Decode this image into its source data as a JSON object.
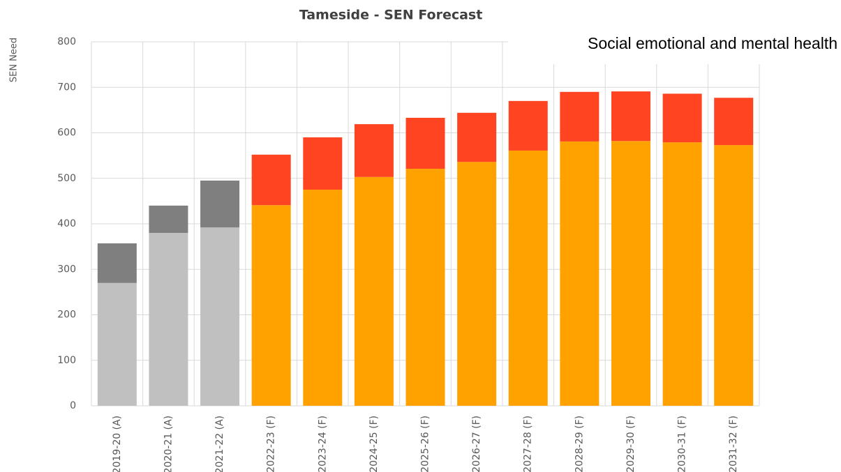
{
  "chart_data": {
    "type": "stacked-bar",
    "title": "Tameside - SEN Forecast",
    "annotation": "Social emotional and mental health",
    "y_label": "SEN Need",
    "categories": [
      "2019-20 (A)",
      "2020-21 (A)",
      "2021-22 (A)",
      "2022-23 (F)",
      "2023-24 (F)",
      "2024-25 (F)",
      "2025-26 (F)",
      "2026-27 (F)",
      "2027-28 (F)",
      "2028-29 (F)",
      "2029-30 (F)",
      "2030-31 (F)",
      "2031-32 (F)"
    ],
    "series": [
      {
        "colors": [
          "#c0c0c0",
          "#c0c0c0",
          "#c0c0c0",
          "#ffa200",
          "#ffa200",
          "#ffa200",
          "#ffa200",
          "#ffa200",
          "#ffa200",
          "#ffa200",
          "#ffa200",
          "#ffa200",
          "#ffa200"
        ],
        "values": [
          270,
          380,
          392,
          441,
          475,
          503,
          521,
          536,
          561,
          581,
          582,
          579,
          573
        ]
      },
      {
        "colors": [
          "#7f7f7f",
          "#7f7f7f",
          "#7f7f7f",
          "#ff4422",
          "#ff4422",
          "#ff4422",
          "#ff4422",
          "#ff4422",
          "#ff4422",
          "#ff4422",
          "#ff4422",
          "#ff4422",
          "#ff4422"
        ],
        "values": [
          87,
          60,
          103,
          111,
          115,
          116,
          112,
          108,
          109,
          109,
          109,
          107,
          104
        ]
      }
    ],
    "ylim": [
      0,
      800
    ],
    "yticks": [
      0,
      100,
      200,
      300,
      400,
      500,
      600,
      700,
      800
    ],
    "grid": true
  }
}
